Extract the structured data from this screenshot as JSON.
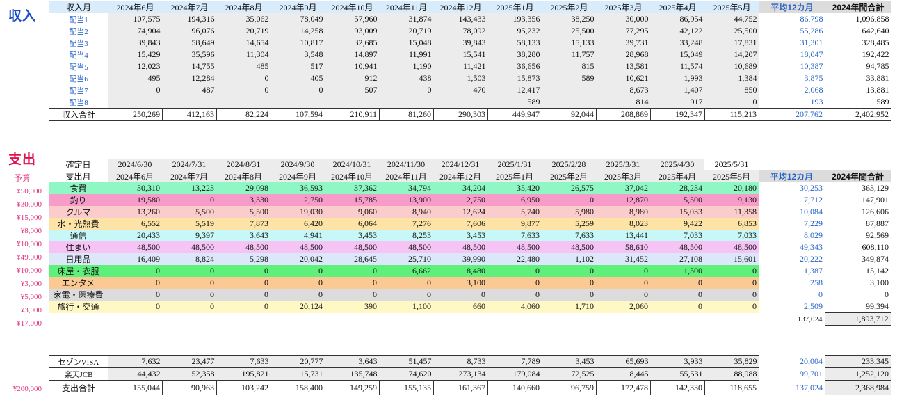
{
  "income": {
    "title": "収入",
    "headers": [
      "収入月",
      "2024年6月",
      "2024年7月",
      "2024年8月",
      "2024年9月",
      "2024年10月",
      "2024年11月",
      "2024年12月",
      "2025年1月",
      "2025年2月",
      "2025年3月",
      "2025年4月",
      "2025年5月",
      "平均12カ月",
      "2024年間合計"
    ],
    "rows": [
      {
        "label": "配当1",
        "values": [
          "107,575",
          "194,316",
          "35,062",
          "78,049",
          "57,960",
          "31,874",
          "143,433",
          "193,356",
          "38,250",
          "30,000",
          "86,954",
          "44,752"
        ],
        "avg": "86,798",
        "total": "1,096,858"
      },
      {
        "label": "配当2",
        "values": [
          "74,904",
          "96,076",
          "20,719",
          "14,258",
          "93,009",
          "20,719",
          "78,092",
          "95,232",
          "25,500",
          "77,295",
          "42,122",
          "25,500"
        ],
        "avg": "55,286",
        "total": "642,640"
      },
      {
        "label": "配当3",
        "values": [
          "39,843",
          "58,649",
          "14,654",
          "10,817",
          "32,685",
          "15,048",
          "39,843",
          "58,133",
          "15,133",
          "39,731",
          "33,248",
          "17,831"
        ],
        "avg": "31,301",
        "total": "328,485"
      },
      {
        "label": "配当4",
        "values": [
          "15,429",
          "35,596",
          "11,304",
          "3,548",
          "14,897",
          "11,991",
          "15,541",
          "38,280",
          "11,757",
          "28,968",
          "15,049",
          "14,207"
        ],
        "avg": "18,047",
        "total": "192,422"
      },
      {
        "label": "配当5",
        "values": [
          "12,023",
          "14,755",
          "485",
          "517",
          "10,941",
          "1,190",
          "11,421",
          "36,656",
          "815",
          "13,581",
          "11,574",
          "10,689"
        ],
        "avg": "10,387",
        "total": "94,785"
      },
      {
        "label": "配当6",
        "values": [
          "495",
          "12,284",
          "0",
          "405",
          "912",
          "438",
          "1,503",
          "15,873",
          "589",
          "10,621",
          "1,993",
          "1,384"
        ],
        "avg": "3,875",
        "total": "33,881"
      },
      {
        "label": "配当7",
        "values": [
          "0",
          "487",
          "0",
          "0",
          "507",
          "0",
          "470",
          "12,417",
          "",
          "8,673",
          "1,407",
          "850"
        ],
        "avg": "2,068",
        "total": "13,881"
      },
      {
        "label": "配当8",
        "values": [
          "",
          "",
          "",
          "",
          "",
          "",
          "",
          "589",
          "",
          "814",
          "917",
          "0"
        ],
        "avg": "193",
        "total": "589"
      }
    ],
    "total_row": {
      "label": "収入合計",
      "values": [
        "250,269",
        "412,163",
        "82,224",
        "107,594",
        "210,911",
        "81,260",
        "290,303",
        "449,947",
        "92,044",
        "208,869",
        "192,347",
        "115,213"
      ],
      "avg": "207,762",
      "total": "2,402,952"
    }
  },
  "expense": {
    "title": "支出",
    "budget_label": "予算",
    "confirm_label": "確定日",
    "confirm_dates": [
      "2024/6/30",
      "2024/7/31",
      "2024/8/31",
      "2024/9/30",
      "2024/10/31",
      "2024/11/30",
      "2024/12/31",
      "2025/1/31",
      "2025/2/28",
      "2025/3/31",
      "2025/4/30",
      "2025/5/31"
    ],
    "headers": [
      "支出月",
      "2024年6月",
      "2024年7月",
      "2024年8月",
      "2024年9月",
      "2024年10月",
      "2024年11月",
      "2024年12月",
      "2025年1月",
      "2025年2月",
      "2025年3月",
      "2025年4月",
      "2025年5月",
      "平均12カ月",
      "2024年間合計"
    ],
    "rows": [
      {
        "budget": "¥50,000",
        "label": "食費",
        "color": "#8ff7c4",
        "values": [
          "30,310",
          "13,223",
          "29,098",
          "36,593",
          "37,362",
          "34,794",
          "34,204",
          "35,420",
          "26,575",
          "37,042",
          "28,234",
          "20,180"
        ],
        "avg": "30,253",
        "total": "363,129"
      },
      {
        "budget": "¥30,000",
        "label": "釣り",
        "color": "#f79bc8",
        "values": [
          "19,580",
          "0",
          "3,330",
          "2,750",
          "15,785",
          "13,900",
          "2,750",
          "6,950",
          "0",
          "12,870",
          "5,500",
          "9,130"
        ],
        "avg": "7,712",
        "total": "147,901"
      },
      {
        "budget": "¥15,000",
        "label": "クルマ",
        "color": "#fbcccc",
        "values": [
          "13,260",
          "5,500",
          "5,500",
          "19,030",
          "9,060",
          "8,940",
          "12,624",
          "5,740",
          "5,980",
          "8,980",
          "15,033",
          "11,358"
        ],
        "avg": "10,084",
        "total": "126,606"
      },
      {
        "budget": "¥8,000",
        "label": "水・光熱費",
        "color": "#fde3a5",
        "values": [
          "6,552",
          "5,519",
          "7,873",
          "6,420",
          "6,064",
          "7,276",
          "7,606",
          "9,877",
          "5,259",
          "8,023",
          "9,422",
          "6,853"
        ],
        "avg": "7,229",
        "total": "87,887"
      },
      {
        "budget": "¥10,000",
        "label": "通信",
        "color": "#c8f7f7",
        "values": [
          "20,433",
          "9,397",
          "3,643",
          "4,941",
          "3,453",
          "8,253",
          "3,453",
          "7,633",
          "7,633",
          "13,441",
          "7,033",
          "7,033"
        ],
        "avg": "8,029",
        "total": "92,569"
      },
      {
        "budget": "¥49,000",
        "label": "住まい",
        "color": "#f5c4f5",
        "values": [
          "48,500",
          "48,500",
          "48,500",
          "48,500",
          "48,500",
          "48,500",
          "48,500",
          "48,500",
          "48,500",
          "58,610",
          "48,500",
          "48,500"
        ],
        "avg": "49,343",
        "total": "608,110"
      },
      {
        "budget": "¥10,000",
        "label": "日用品",
        "color": "#dce8fa",
        "values": [
          "16,409",
          "8,824",
          "5,298",
          "20,042",
          "28,645",
          "25,710",
          "39,990",
          "22,480",
          "1,102",
          "31,452",
          "27,108",
          "15,601"
        ],
        "avg": "20,222",
        "total": "349,874"
      },
      {
        "budget": "¥3,000",
        "label": "床屋・衣服",
        "color": "#5ef07a",
        "values": [
          "0",
          "0",
          "0",
          "0",
          "0",
          "6,662",
          "8,480",
          "0",
          "0",
          "0",
          "1,500",
          "0"
        ],
        "avg": "1,387",
        "total": "15,142"
      },
      {
        "budget": "¥5,000",
        "label": "エンタメ",
        "color": "#fbc994",
        "values": [
          "0",
          "0",
          "0",
          "0",
          "0",
          "0",
          "3,100",
          "0",
          "0",
          "0",
          "0",
          "0"
        ],
        "avg": "258",
        "total": "3,100"
      },
      {
        "budget": "¥3,000",
        "label": "家電・医療費",
        "color": "#dcdcdc",
        "values": [
          "0",
          "0",
          "0",
          "0",
          "0",
          "0",
          "0",
          "0",
          "0",
          "0",
          "0",
          "0"
        ],
        "avg": "0",
        "total": "0"
      },
      {
        "budget": "¥17,000",
        "label": "旅行・交通",
        "color": "#fff8c4",
        "values": [
          "0",
          "0",
          "0",
          "20,124",
          "390",
          "1,100",
          "660",
          "4,060",
          "1,710",
          "2,060",
          "0",
          "0"
        ],
        "avg": "2,509",
        "total": "99,394"
      }
    ],
    "subtotal": {
      "avg": "137,024",
      "total": "1,893,712"
    },
    "cards": [
      {
        "label": "セゾンVISA",
        "values": [
          "7,632",
          "23,477",
          "7,633",
          "20,777",
          "3,643",
          "51,457",
          "8,733",
          "7,789",
          "3,453",
          "65,693",
          "3,933",
          "35,829"
        ],
        "avg": "20,004",
        "total": "233,345"
      },
      {
        "label": "楽天JCB",
        "values": [
          "44,432",
          "52,358",
          "195,821",
          "15,731",
          "135,748",
          "74,620",
          "273,134",
          "179,084",
          "72,525",
          "8,445",
          "55,531",
          "88,988"
        ],
        "avg": "99,701",
        "total": "1,252,120"
      }
    ],
    "total_row": {
      "budget": "¥200,000",
      "label": "支出合計",
      "values": [
        "155,044",
        "90,963",
        "103,242",
        "158,400",
        "149,259",
        "155,135",
        "161,367",
        "140,660",
        "96,759",
        "172,478",
        "142,330",
        "118,655"
      ],
      "avg": "137,024",
      "total": "2,368,984"
    }
  }
}
